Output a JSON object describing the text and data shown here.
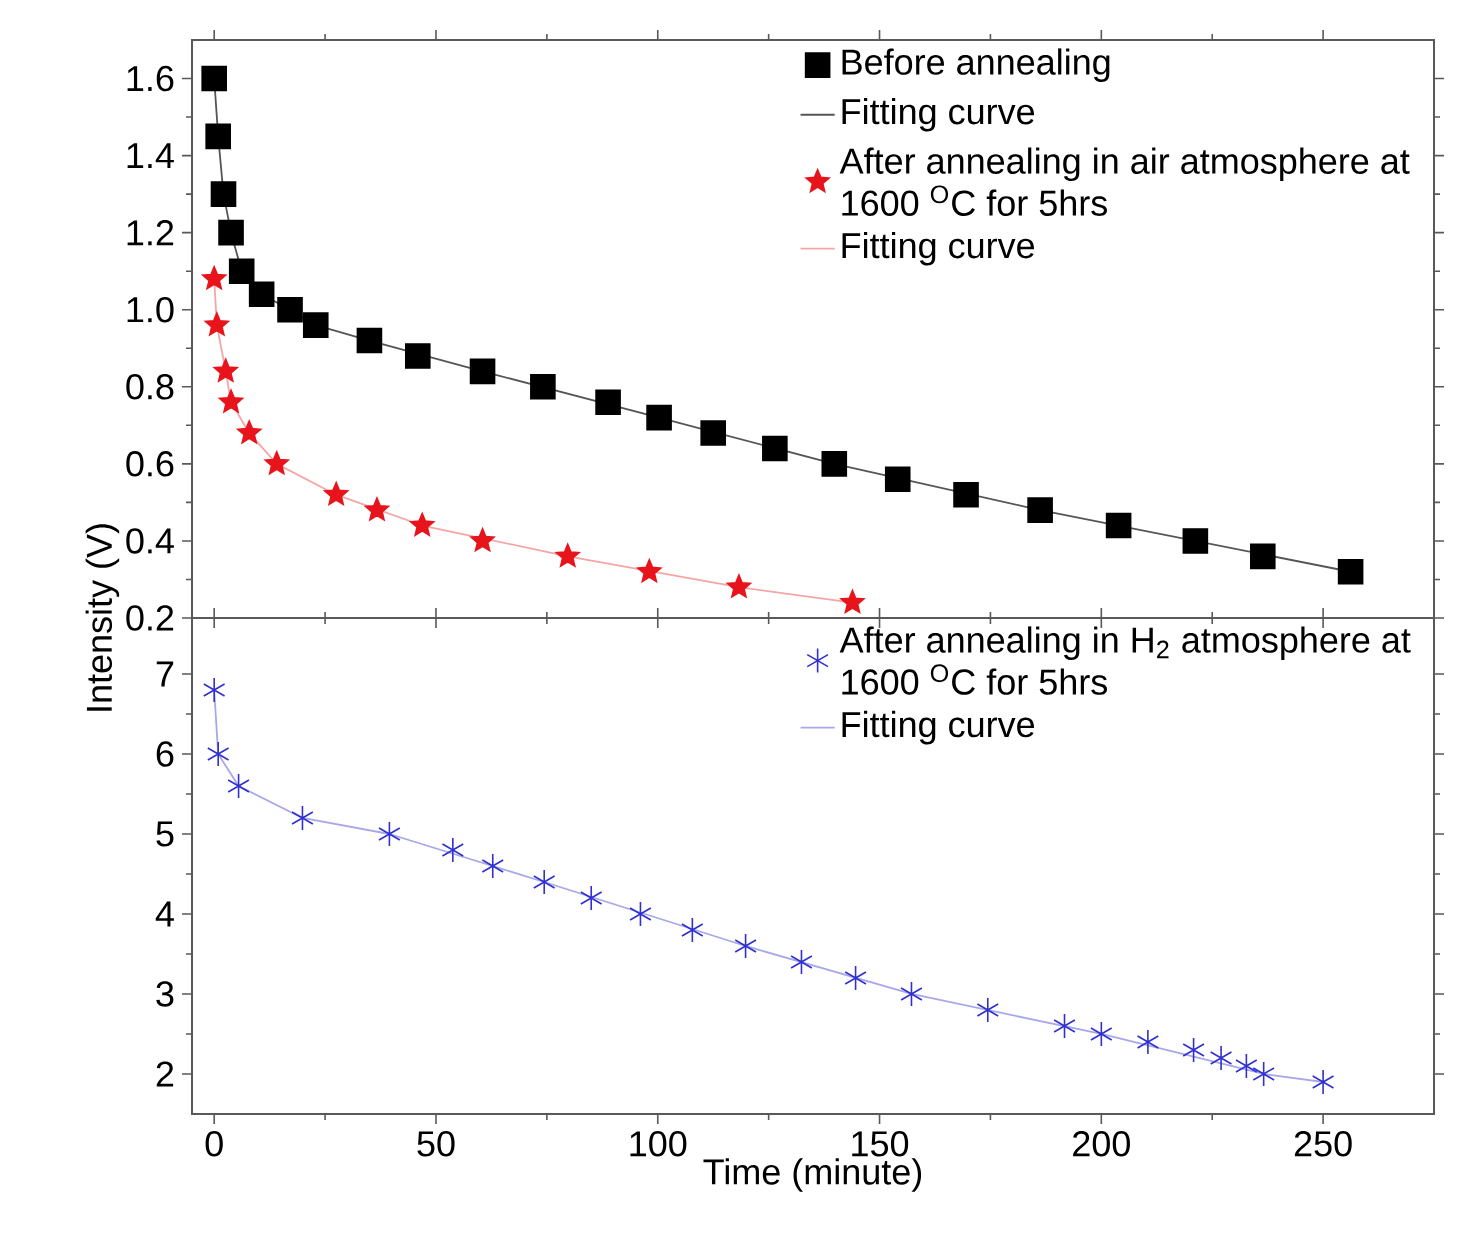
{
  "chart_data": [
    {
      "type": "scatter",
      "ylabel": "Intensity (V)",
      "xlim": [
        -5,
        275
      ],
      "ylim": [
        0.2,
        1.7
      ],
      "xticks": [
        0,
        50,
        100,
        150,
        200,
        250
      ],
      "yticks": [
        0.2,
        0.4,
        0.6,
        0.8,
        {
          "value": 1.0,
          "label": "1.0"
        },
        1.2,
        1.4,
        1.6
      ],
      "tick_labels": "y",
      "legend": "top right",
      "series": [
        {
          "name": "Before annealing",
          "type": "scatter",
          "marker": "square",
          "color": "#000000",
          "x": [
            0,
            0.9,
            2.1,
            3.8,
            6.2,
            10.7,
            17.1,
            22.9,
            35,
            45.9,
            60.5,
            74.1,
            88.8,
            100.3,
            112.5,
            126.4,
            139.8,
            154.1,
            169.5,
            186.2,
            203.9,
            221.2,
            236.4,
            256.2
          ],
          "values": [
            1.6,
            1.45,
            1.3,
            1.2,
            1.1,
            1.04,
            1.0,
            0.96,
            0.92,
            0.88,
            0.84,
            0.8,
            0.76,
            0.72,
            0.68,
            0.64,
            0.6,
            0.56,
            0.52,
            0.48,
            0.44,
            0.4,
            0.36,
            0.32
          ]
        },
        {
          "name": "Fitting curve",
          "type": "line",
          "marker": "none",
          "line_style": "solid",
          "color": "#555555",
          "x": [
            0,
            0.9,
            2.1,
            3.8,
            6.2,
            10.7,
            17.1,
            22.9,
            35,
            60.5,
            100.3,
            139.8,
            186.2,
            221.2,
            256.2
          ],
          "values": [
            1.6,
            1.45,
            1.3,
            1.2,
            1.1,
            1.04,
            1.0,
            0.96,
            0.92,
            0.84,
            0.72,
            0.6,
            0.48,
            0.4,
            0.32
          ]
        },
        {
          "name": "After annealing in air atmosphere at 1600 $^{O}$C for 5hrs",
          "type": "scatter",
          "marker": "star",
          "color": "#e8141c",
          "x": [
            0,
            0.6,
            2.6,
            3.8,
            7.9,
            14.1,
            27.5,
            36.7,
            46.9,
            60.5,
            79.7,
            98.1,
            118.3,
            143.9
          ],
          "values": [
            1.08,
            0.96,
            0.84,
            0.76,
            0.68,
            0.6,
            0.52,
            0.48,
            0.44,
            0.4,
            0.36,
            0.32,
            0.28,
            0.24
          ]
        },
        {
          "name": "Fitting curve",
          "type": "line",
          "marker": "none",
          "line_style": "solid",
          "color": "#f4a6a6",
          "x": [
            0,
            0.6,
            2.6,
            3.8,
            7.9,
            14.1,
            27.5,
            46.9,
            79.7,
            118.3,
            143.9
          ],
          "values": [
            1.08,
            0.96,
            0.84,
            0.76,
            0.68,
            0.6,
            0.52,
            0.44,
            0.36,
            0.28,
            0.24
          ]
        }
      ]
    },
    {
      "type": "scatter",
      "xlabel": "Time (minute)",
      "xlim": [
        -5,
        275
      ],
      "ylim": [
        1.5,
        7.7
      ],
      "xticks": [
        0,
        50,
        100,
        150,
        200,
        250
      ],
      "yticks": [
        2,
        3,
        4,
        5,
        6,
        7
      ],
      "legend": "top right",
      "series": [
        {
          "name": "After annealing in H$_{2}$ atmosphere at 1600 $^{O}$C for 5hrs",
          "type": "scatter",
          "marker": "cross",
          "color": "#3030d0",
          "x": [
            0,
            0.9,
            5.5,
            19.9,
            39.5,
            53.8,
            62.8,
            74.4,
            85,
            96.1,
            107.8,
            119.8,
            132.4,
            144.6,
            157.2,
            174.4,
            191.7,
            200,
            210.5,
            220.8,
            227,
            232.7,
            236.6,
            250
          ],
          "values": [
            6.8,
            6.0,
            5.6,
            5.2,
            5.0,
            4.8,
            4.6,
            4.4,
            4.2,
            4.0,
            3.8,
            3.6,
            3.4,
            3.2,
            3.0,
            2.8,
            2.6,
            2.5,
            2.4,
            2.3,
            2.2,
            2.1,
            2.0,
            1.9
          ]
        },
        {
          "name": "Fitting curve",
          "type": "line",
          "marker": "none",
          "line_style": "solid",
          "color": "#a8a8e8",
          "x": [
            0,
            0.9,
            5.5,
            19.9,
            39.5,
            74.4,
            119.8,
            157.2,
            200,
            236.6,
            250
          ],
          "values": [
            6.8,
            6.0,
            5.6,
            5.2,
            5.0,
            4.4,
            3.6,
            3.0,
            2.5,
            2.0,
            1.9
          ]
        }
      ]
    }
  ]
}
